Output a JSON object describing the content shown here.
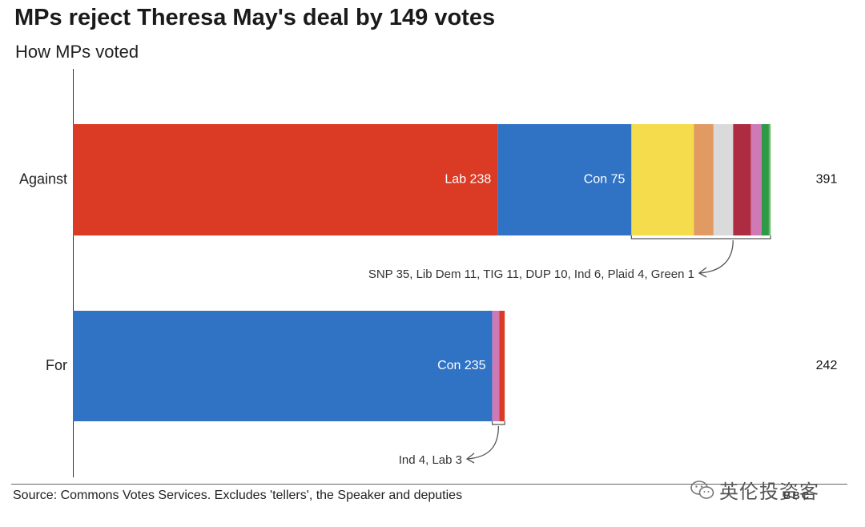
{
  "title": "MPs reject Theresa May's deal by 149 votes",
  "subtitle": "How MPs voted",
  "source": "Source: Commons Votes Services. Excludes 'tellers', the Speaker and deputies",
  "watermark": {
    "text": "英伦投资客",
    "badge": "BBC"
  },
  "chart_data": {
    "type": "bar",
    "orientation": "horizontal",
    "stacked": true,
    "categories": [
      "Against",
      "For"
    ],
    "xlim": [
      0,
      391
    ],
    "rows": [
      {
        "category": "Against",
        "total": 391,
        "segments": [
          {
            "party": "Lab",
            "value": 238,
            "label": "Lab 238",
            "color": "#db3a25"
          },
          {
            "party": "Con",
            "value": 75,
            "label": "Con 75",
            "color": "#3073c4"
          },
          {
            "party": "SNP",
            "value": 35,
            "label": "",
            "color": "#f4dc4c"
          },
          {
            "party": "Lib Dem",
            "value": 11,
            "label": "",
            "color": "#e09a62"
          },
          {
            "party": "TIG",
            "value": 11,
            "label": "",
            "color": "#dadada"
          },
          {
            "party": "DUP",
            "value": 10,
            "label": "",
            "color": "#ae2c41"
          },
          {
            "party": "Ind",
            "value": 6,
            "label": "",
            "color": "#cf79b7"
          },
          {
            "party": "Plaid",
            "value": 4,
            "label": "",
            "color": "#2f9a46"
          },
          {
            "party": "Green",
            "value": 1,
            "label": "",
            "color": "#6aba5b"
          }
        ],
        "annotation": "SNP 35, Lib Dem 11, TIG 11, DUP 10, Ind 6, Plaid 4, Green 1"
      },
      {
        "category": "For",
        "total": 242,
        "segments": [
          {
            "party": "Con",
            "value": 235,
            "label": "Con 235",
            "color": "#3073c4"
          },
          {
            "party": "Ind",
            "value": 4,
            "label": "",
            "color": "#cf79b7"
          },
          {
            "party": "Lab",
            "value": 3,
            "label": "",
            "color": "#db3a25"
          }
        ],
        "annotation": "Ind 4, Lab 3"
      }
    ]
  }
}
